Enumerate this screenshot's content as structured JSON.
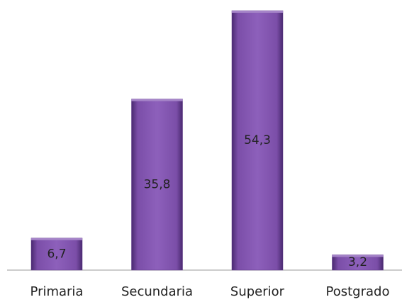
{
  "chart_data": {
    "type": "bar",
    "categories": [
      "Primaria",
      "Secundaria",
      "Superior",
      "Postgrado"
    ],
    "values": [
      6.7,
      35.8,
      54.3,
      3.2
    ],
    "value_labels": [
      "6,7",
      "35,8",
      "54,3",
      "3,2"
    ],
    "color": "#7b4ea8"
  }
}
